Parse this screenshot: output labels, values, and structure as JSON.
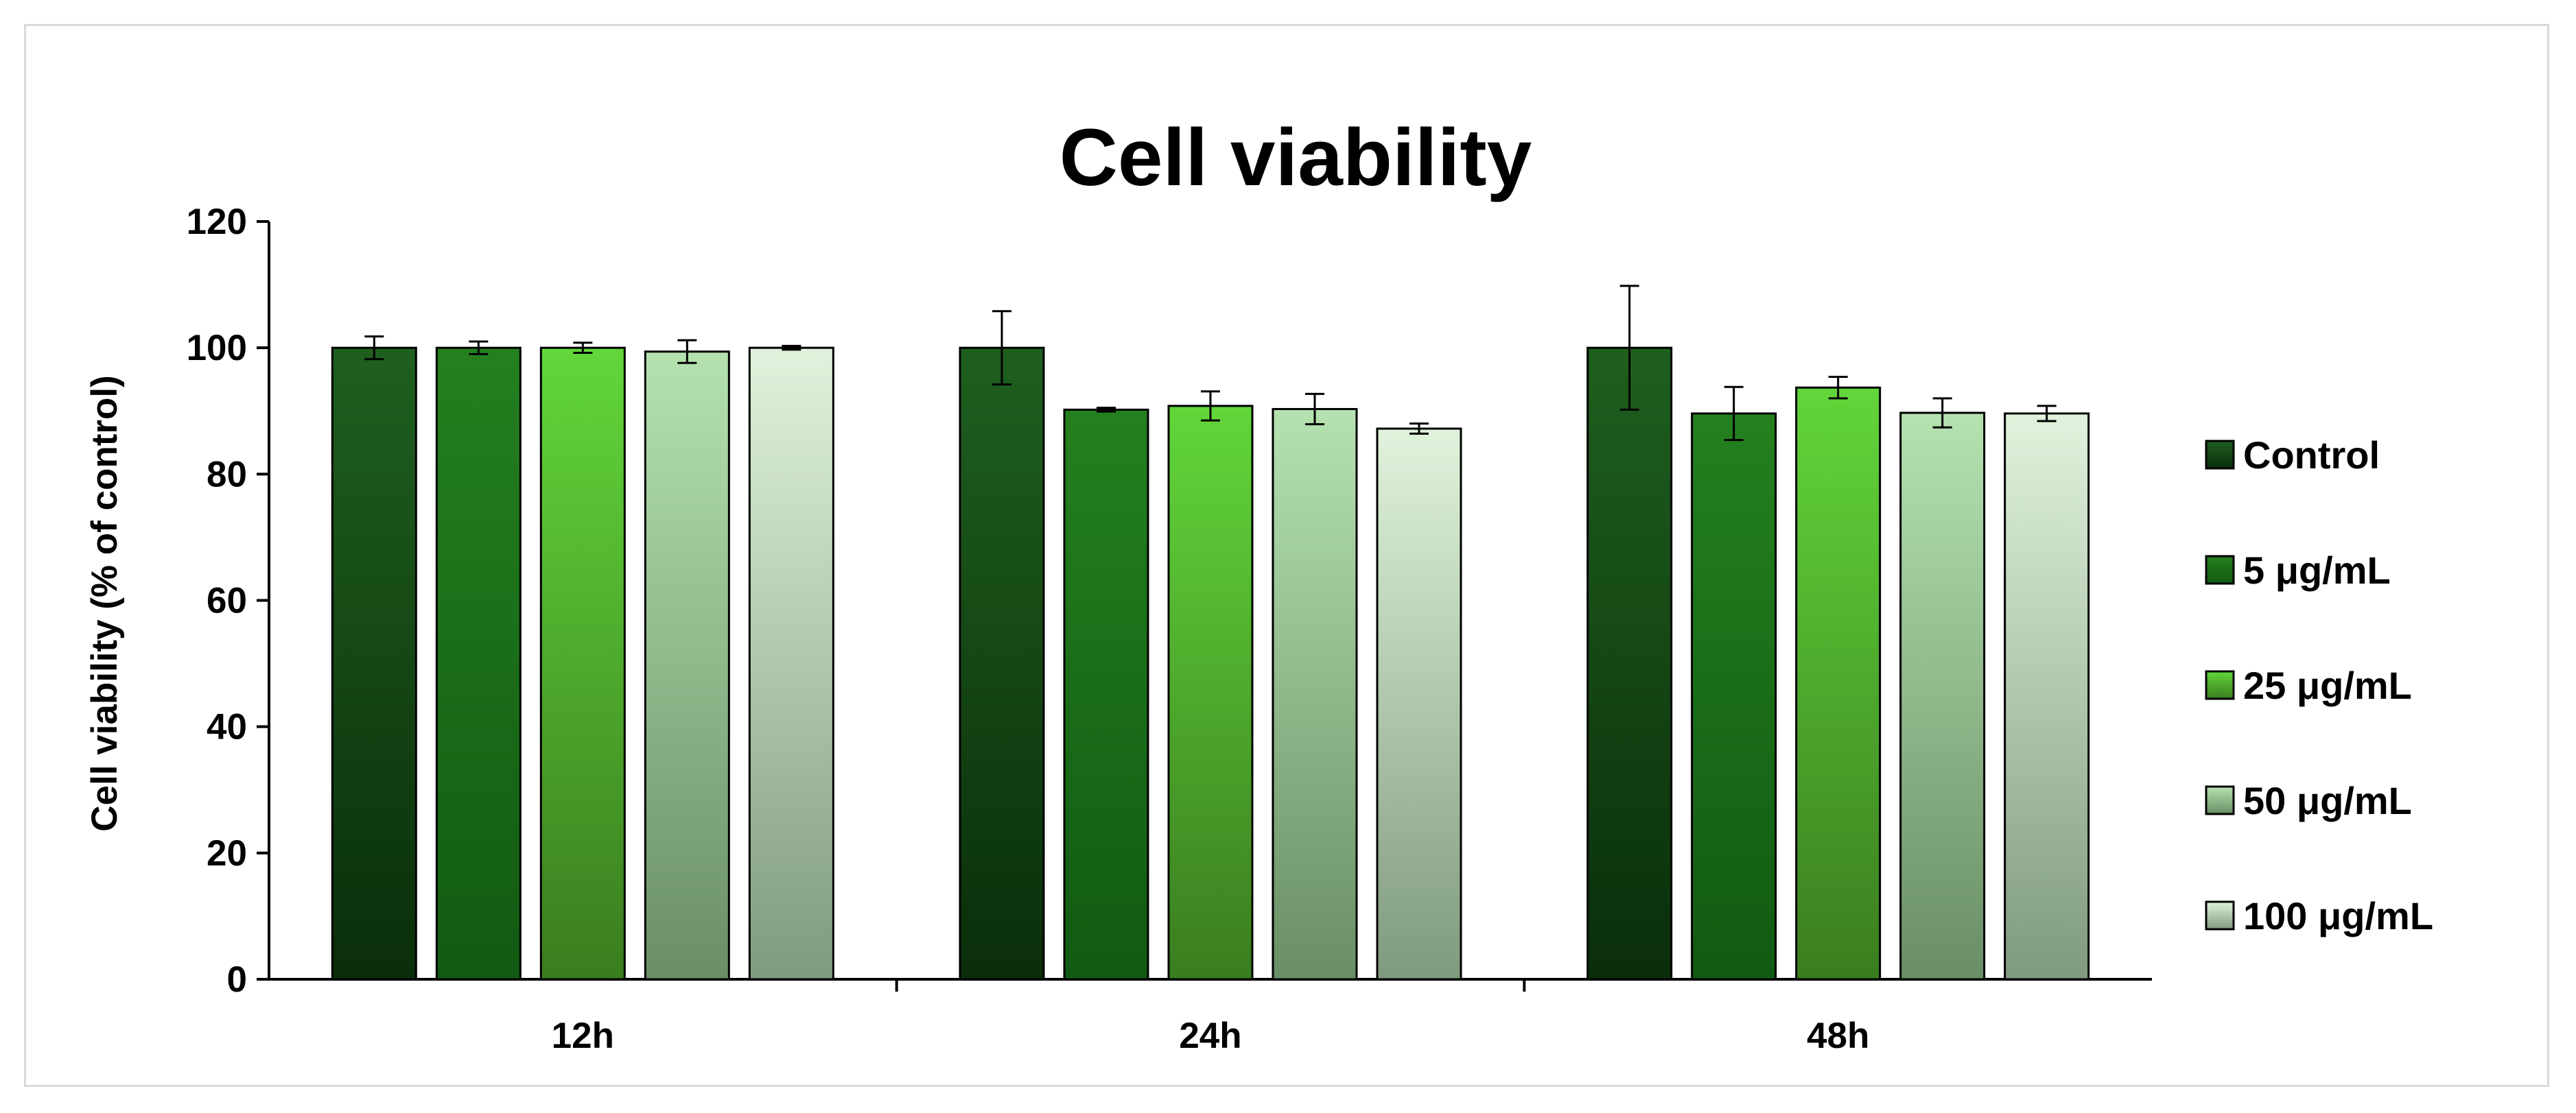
{
  "chart_data": {
    "type": "bar",
    "title": "Cell viability",
    "xlabel": "",
    "ylabel": "Cell viability (% of control)",
    "categories": [
      "12h",
      "24h",
      "48h"
    ],
    "ylim": [
      0,
      120
    ],
    "yticks": [
      0,
      20,
      40,
      60,
      80,
      100,
      120
    ],
    "grid": false,
    "legend_position": "right",
    "series": [
      {
        "name": "Control",
        "values": [
          100,
          100,
          100
        ],
        "errors": [
          1.8,
          5.8,
          9.8
        ],
        "color_top": "#1f5f1f",
        "color_bottom": "#0a2e0a"
      },
      {
        "name": "5 μg/mL",
        "values": [
          100,
          90.2,
          89.6
        ],
        "errors": [
          1.0,
          0.3,
          4.2
        ],
        "color_top": "#24801f",
        "color_bottom": "#115a12"
      },
      {
        "name": "25 μg/mL",
        "values": [
          100,
          90.8,
          93.7
        ],
        "errors": [
          0.8,
          2.3,
          1.7
        ],
        "color_top": "#62d63a",
        "color_bottom": "#3a7d1f"
      },
      {
        "name": "50 μg/mL",
        "values": [
          99.4,
          90.3,
          89.7
        ],
        "errors": [
          1.8,
          2.4,
          2.3
        ],
        "color_top": "#b5e2b0",
        "color_bottom": "#6a8e66"
      },
      {
        "name": "100 μg/mL",
        "values": [
          100,
          87.2,
          89.6
        ],
        "errors": [
          0.3,
          0.8,
          1.2
        ],
        "color_top": "#e0f3dc",
        "color_bottom": "#7f9a7d"
      }
    ]
  }
}
